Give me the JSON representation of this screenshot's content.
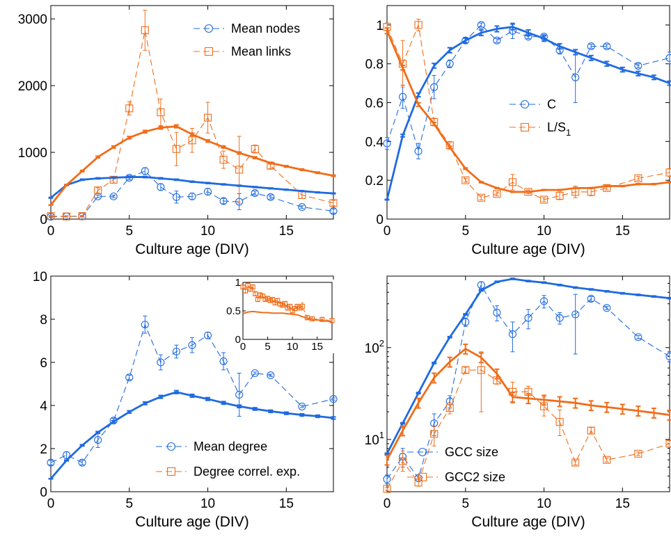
{
  "colors": {
    "blue": "#1f6ae0",
    "orange": "#f06d1a"
  },
  "chart_data": [
    {
      "type": "line",
      "xlabel": "Culture age (DIV)",
      "ylabel": "",
      "xlim": [
        0,
        18
      ],
      "ylim": [
        0,
        3200
      ],
      "yscale": "linear",
      "xticks": [
        0,
        5,
        10,
        15
      ],
      "yticks": [
        0,
        1000,
        2000,
        3000
      ],
      "grid": false,
      "legend_position": "top-right",
      "legend": [
        {
          "label": "Mean nodes",
          "color": "#1f6ae0",
          "marker": "circle"
        },
        {
          "label": "Mean links",
          "color": "#f06d1a",
          "marker": "square"
        }
      ],
      "series": [
        {
          "name": "Mean nodes",
          "color": "#1f6ae0",
          "marker": "circle",
          "style": "dashed",
          "x": [
            0,
            1,
            2,
            3,
            4,
            5,
            6,
            7,
            8,
            9,
            10,
            11,
            12,
            13,
            14,
            16,
            18
          ],
          "y": [
            35,
            40,
            40,
            340,
            340,
            620,
            720,
            480,
            330,
            340,
            410,
            270,
            260,
            390,
            330,
            180,
            120
          ],
          "err": [
            10,
            10,
            10,
            20,
            20,
            30,
            50,
            50,
            90,
            50,
            50,
            40,
            120,
            30,
            30,
            20,
            30
          ]
        },
        {
          "name": "Mean links",
          "color": "#f06d1a",
          "marker": "square",
          "style": "dashed",
          "x": [
            0,
            1,
            2,
            3,
            4,
            5,
            6,
            7,
            8,
            9,
            10,
            11,
            12,
            13,
            14,
            16,
            18
          ],
          "y": [
            45,
            40,
            45,
            430,
            590,
            1660,
            2830,
            1600,
            1050,
            1180,
            1520,
            890,
            740,
            1050,
            800,
            360,
            240
          ],
          "err": [
            10,
            10,
            10,
            40,
            50,
            100,
            300,
            200,
            250,
            180,
            230,
            130,
            500,
            60,
            40,
            50,
            40
          ]
        },
        {
          "style": "solid",
          "color": "#1f6ae0",
          "x": [
            0,
            1,
            2,
            3,
            4,
            5,
            6,
            7,
            8,
            9,
            10,
            11,
            12,
            13,
            14,
            15,
            16,
            17,
            18
          ],
          "y": [
            320,
            510,
            590,
            610,
            620,
            630,
            630,
            610,
            590,
            560,
            540,
            520,
            500,
            480,
            460,
            440,
            420,
            400,
            385
          ]
        },
        {
          "style": "solid",
          "color": "#f06d1a",
          "x": [
            0,
            1,
            2,
            3,
            4,
            5,
            6,
            7,
            8,
            9,
            10,
            11,
            12,
            13,
            14,
            15,
            16,
            17,
            18
          ],
          "y": [
            210,
            510,
            720,
            930,
            1080,
            1220,
            1310,
            1370,
            1390,
            1270,
            1170,
            1080,
            990,
            920,
            840,
            790,
            740,
            695,
            650
          ]
        }
      ]
    },
    {
      "type": "line",
      "xlabel": "Culture age (DIV)",
      "ylabel": "",
      "xlim": [
        0,
        18
      ],
      "ylim": [
        0,
        1.1
      ],
      "yscale": "linear",
      "xticks": [
        0,
        5,
        10,
        15
      ],
      "yticks": [
        0,
        0.2,
        0.4,
        0.6,
        0.8,
        1
      ],
      "grid": false,
      "legend_position": "center-right",
      "legend": [
        {
          "label": "C",
          "color": "#1f6ae0",
          "marker": "circle"
        },
        {
          "label": "L/S",
          "sub": "1",
          "color": "#f06d1a",
          "marker": "square"
        }
      ],
      "series": [
        {
          "name": "C",
          "color": "#1f6ae0",
          "marker": "circle",
          "style": "dashed",
          "x": [
            0,
            1,
            2,
            3,
            4,
            5,
            6,
            7,
            8,
            9,
            10,
            11,
            12,
            13,
            14,
            16,
            18
          ],
          "y": [
            0.39,
            0.63,
            0.35,
            0.68,
            0.8,
            0.92,
            1.0,
            0.92,
            0.97,
            0.94,
            0.94,
            0.87,
            0.73,
            0.89,
            0.89,
            0.79,
            0.83
          ],
          "err": [
            0.03,
            0.06,
            0.04,
            0.06,
            0.02,
            0.01,
            0.01,
            0.01,
            0.04,
            0.01,
            0.01,
            0.02,
            0.13,
            0.01,
            0.01,
            0.01,
            0.03
          ]
        },
        {
          "name": "L/S1",
          "color": "#f06d1a",
          "marker": "square",
          "style": "dashed",
          "x": [
            0,
            1,
            2,
            3,
            4,
            5,
            6,
            7,
            8,
            9,
            10,
            11,
            12,
            13,
            14,
            16,
            18
          ],
          "y": [
            0.99,
            0.8,
            1.0,
            0.5,
            0.38,
            0.2,
            0.11,
            0.13,
            0.19,
            0.14,
            0.1,
            0.12,
            0.14,
            0.14,
            0.16,
            0.21,
            0.24
          ],
          "err": [
            0.02,
            0.12,
            0.03,
            0.02,
            0.02,
            0.01,
            0.01,
            0.01,
            0.04,
            0.01,
            0.01,
            0.02,
            0.03,
            0.02,
            0.01,
            0.01,
            0.02
          ]
        },
        {
          "style": "solid",
          "color": "#1f6ae0",
          "x": [
            0,
            1,
            2,
            3,
            4,
            5,
            6,
            7,
            8,
            9,
            10,
            11,
            12,
            13,
            14,
            15,
            16,
            17,
            18
          ],
          "y": [
            0.1,
            0.43,
            0.64,
            0.79,
            0.87,
            0.92,
            0.96,
            0.98,
            0.99,
            0.96,
            0.93,
            0.89,
            0.86,
            0.83,
            0.8,
            0.77,
            0.75,
            0.73,
            0.7
          ]
        },
        {
          "style": "solid",
          "color": "#f06d1a",
          "x": [
            0,
            1,
            2,
            3,
            4,
            5,
            6,
            7,
            8,
            9,
            10,
            11,
            12,
            13,
            14,
            15,
            16,
            17,
            18
          ],
          "y": [
            0.97,
            0.78,
            0.59,
            0.49,
            0.37,
            0.26,
            0.19,
            0.16,
            0.14,
            0.14,
            0.15,
            0.15,
            0.16,
            0.16,
            0.17,
            0.17,
            0.18,
            0.18,
            0.19
          ]
        }
      ]
    },
    {
      "type": "line",
      "xlabel": "Culture age (DIV)",
      "ylabel": "",
      "xlim": [
        0,
        18
      ],
      "ylim": [
        0,
        10
      ],
      "yscale": "linear",
      "xticks": [
        0,
        5,
        10,
        15
      ],
      "yticks": [
        0,
        2,
        4,
        6,
        8,
        10
      ],
      "grid": false,
      "legend_position": "bottom-right",
      "legend": [
        {
          "label": "Mean degree",
          "color": "#1f6ae0",
          "marker": "circle"
        },
        {
          "label": "Degree correl. exp.",
          "color": "#f06d1a",
          "marker": "square"
        }
      ],
      "series": [
        {
          "name": "Mean degree",
          "color": "#1f6ae0",
          "marker": "circle",
          "style": "dashed",
          "x": [
            0,
            1,
            2,
            3,
            4,
            5,
            6,
            7,
            8,
            9,
            10,
            11,
            12,
            13,
            14,
            16,
            18
          ],
          "y": [
            1.35,
            1.7,
            1.35,
            2.4,
            3.3,
            5.3,
            7.75,
            6.0,
            6.5,
            6.8,
            7.25,
            6.05,
            4.5,
            5.5,
            5.4,
            3.95,
            4.3
          ],
          "err": [
            0.1,
            0.15,
            0.1,
            0.35,
            0.1,
            0.1,
            0.4,
            0.35,
            0.3,
            0.35,
            0.15,
            0.4,
            1.0,
            0.05,
            0.05,
            0.05,
            0.05
          ]
        },
        {
          "style": "solid",
          "color": "#1f6ae0",
          "x": [
            0,
            1,
            2,
            3,
            4,
            5,
            6,
            7,
            8,
            9,
            10,
            11,
            12,
            13,
            14,
            15,
            16,
            17,
            18
          ],
          "y": [
            0.6,
            1.45,
            2.15,
            2.75,
            3.25,
            3.7,
            4.1,
            4.4,
            4.62,
            4.45,
            4.3,
            4.12,
            3.96,
            3.84,
            3.73,
            3.64,
            3.56,
            3.5,
            3.42
          ]
        }
      ],
      "inset": {
        "xlim": [
          0,
          18
        ],
        "ylim": [
          0,
          1
        ],
        "xticks": [
          0,
          5,
          10,
          15
        ],
        "yticks": [
          0,
          0.5,
          1
        ],
        "series": [
          {
            "name": "Degree correl. exp.",
            "color": "#f06d1a",
            "marker": "square",
            "style": "dashed",
            "x": [
              0,
              0.5,
              1,
              1.5,
              2,
              2.5,
              3,
              3.5,
              4,
              4.5,
              5,
              5.5,
              6,
              6.5,
              7,
              7.5,
              8,
              8.5,
              9,
              9.5,
              10,
              10.5,
              11,
              11.5,
              12,
              13,
              14,
              16,
              18
            ],
            "y": [
              0.92,
              0.85,
              0.95,
              0.88,
              0.92,
              0.8,
              0.7,
              0.78,
              0.76,
              0.7,
              0.72,
              0.68,
              0.7,
              0.64,
              0.68,
              0.62,
              0.6,
              0.63,
              0.55,
              0.58,
              0.5,
              0.54,
              0.58,
              0.55,
              0.58,
              0.38,
              0.36,
              0.35,
              0.33
            ],
            "err": [
              0.03,
              0.03,
              0.03,
              0.03,
              0.03,
              0.03,
              0.03,
              0.03,
              0.03,
              0.03,
              0.03,
              0.03,
              0.03,
              0.03,
              0.03,
              0.03,
              0.03,
              0.03,
              0.03,
              0.03,
              0.03,
              0.03,
              0.03,
              0.03,
              0.06,
              0.03,
              0.03,
              0.03,
              0.03
            ]
          },
          {
            "style": "solid",
            "color": "#f06d1a",
            "x": [
              0,
              1,
              2,
              3,
              4,
              5,
              6,
              7,
              8,
              9,
              10,
              11,
              12,
              13,
              14,
              15,
              16,
              17,
              18
            ],
            "y": [
              0.45,
              0.48,
              0.49,
              0.48,
              0.47,
              0.47,
              0.46,
              0.46,
              0.46,
              0.45,
              0.44,
              0.43,
              0.4,
              0.37,
              0.35,
              0.34,
              0.33,
              0.32,
              0.31
            ]
          }
        ]
      }
    },
    {
      "type": "line",
      "xlabel": "Culture age (DIV)",
      "ylabel": "",
      "xlim": [
        0,
        18
      ],
      "ylim": [
        2.7,
        600
      ],
      "yscale": "log",
      "xticks": [
        0,
        5,
        10,
        15
      ],
      "yticks": [
        10,
        100
      ],
      "ytick_labels": [
        {
          "base": "10",
          "exp": "1"
        },
        {
          "base": "10",
          "exp": "2"
        }
      ],
      "grid": false,
      "legend_position": "bottom-center",
      "legend": [
        {
          "label": "GCC size",
          "color": "#1f6ae0",
          "marker": "circle"
        },
        {
          "label": "GCC2 size",
          "color": "#f06d1a",
          "marker": "square"
        }
      ],
      "series": [
        {
          "name": "GCC size",
          "color": "#1f6ae0",
          "marker": "circle",
          "style": "dashed",
          "x": [
            0,
            1,
            2,
            3,
            4,
            5,
            6,
            7,
            8,
            9,
            10,
            11,
            12,
            13,
            14,
            16,
            18
          ],
          "y": [
            3.7,
            6.5,
            3.8,
            15,
            26,
            190,
            480,
            240,
            140,
            210,
            320,
            210,
            230,
            340,
            270,
            130,
            80
          ],
          "err_lo": [
            3.3,
            5.0,
            3.5,
            11,
            22,
            170,
            440,
            195,
            90,
            160,
            270,
            180,
            85,
            320,
            260,
            125,
            70
          ],
          "err_hi": [
            4.1,
            8.0,
            4.1,
            19,
            30,
            210,
            520,
            285,
            190,
            260,
            370,
            240,
            380,
            360,
            280,
            135,
            90
          ]
        },
        {
          "name": "GCC2 size",
          "color": "#f06d1a",
          "marker": "square",
          "style": "dashed",
          "x": [
            0,
            1,
            2,
            3,
            4,
            5,
            6,
            7,
            8,
            9,
            10,
            11,
            12,
            13,
            14,
            16,
            18
          ],
          "y": [
            2.9,
            5.8,
            3.4,
            11.5,
            22,
            57,
            57,
            44,
            33,
            33,
            23,
            15.5,
            5.6,
            12.5,
            6.0,
            7.0,
            9.0
          ],
          "err_lo": [
            2.8,
            4.5,
            3.1,
            8.5,
            19,
            53,
            20,
            40,
            25,
            28,
            18,
            11,
            5.3,
            11.5,
            5.7,
            6.7,
            8.3
          ],
          "err_hi": [
            3.0,
            7.5,
            3.7,
            14,
            25,
            61,
            90,
            48,
            42,
            38,
            29,
            21,
            5.9,
            13.5,
            6.3,
            7.3,
            9.7
          ]
        },
        {
          "style": "solid",
          "color": "#1f6ae0",
          "x": [
            0,
            1,
            2,
            3,
            4,
            5,
            6,
            7,
            8,
            9,
            10,
            11,
            12,
            13,
            14,
            15,
            16,
            17,
            18
          ],
          "y": [
            7,
            15,
            32,
            68,
            130,
            230,
            420,
            520,
            560,
            530,
            510,
            480,
            450,
            430,
            410,
            390,
            375,
            360,
            345
          ]
        },
        {
          "style": "solid",
          "color": "#f06d1a",
          "x": [
            0,
            1,
            2,
            3,
            4,
            5,
            6,
            7,
            8,
            9,
            10,
            11,
            12,
            13,
            14,
            15,
            16,
            17,
            18
          ],
          "y": [
            6,
            12.5,
            25,
            47,
            70,
            97,
            78,
            52,
            29,
            28,
            27,
            26,
            25,
            23.5,
            22.5,
            21.5,
            20.5,
            19.5,
            18.5
          ],
          "err_band": 0.12
        }
      ]
    }
  ]
}
